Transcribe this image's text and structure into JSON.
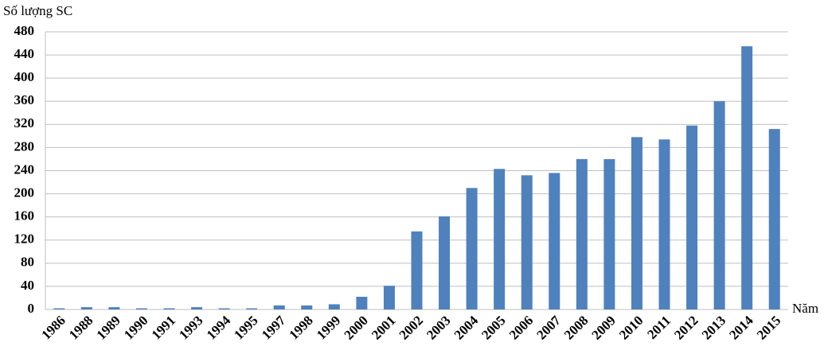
{
  "chart_data": {
    "type": "bar",
    "y_label": "Số lượng SC",
    "x_label": "Năm",
    "categories": [
      "1986",
      "1988",
      "1989",
      "1990",
      "1991",
      "1993",
      "1994",
      "1995",
      "1997",
      "1998",
      "1999",
      "2000",
      "2001",
      "2002",
      "2003",
      "2004",
      "2005",
      "2006",
      "2007",
      "2008",
      "2009",
      "2010",
      "2011",
      "2012",
      "2013",
      "2014",
      "2015"
    ],
    "values": [
      2,
      4,
      4,
      2,
      2,
      4,
      2,
      2,
      7,
      7,
      9,
      22,
      41,
      135,
      161,
      210,
      243,
      232,
      236,
      260,
      260,
      298,
      294,
      318,
      360,
      455,
      312
    ],
    "color": "#4f81bd",
    "ylim": [
      0,
      480
    ],
    "yticks": [
      0,
      40,
      80,
      120,
      160,
      200,
      240,
      280,
      320,
      360,
      400,
      440,
      480
    ],
    "grid": true
  }
}
